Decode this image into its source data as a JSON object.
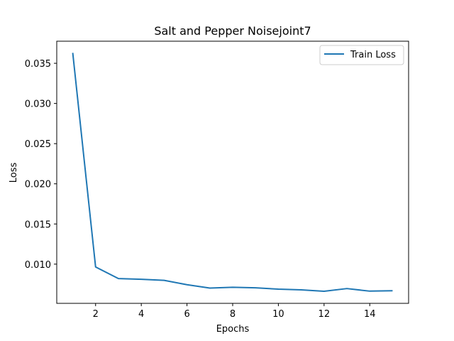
{
  "chart_data": {
    "type": "line",
    "title": "Salt and Pepper Noisejoint7",
    "xlabel": "Epochs",
    "ylabel": "Loss",
    "xlim": [
      0.3,
      15.7
    ],
    "ylim": [
      0.00512,
      0.03775
    ],
    "xticks": [
      2,
      4,
      6,
      8,
      10,
      12,
      14
    ],
    "xtick_labels": [
      "2",
      "4",
      "6",
      "8",
      "10",
      "12",
      "14"
    ],
    "yticks": [
      0.01,
      0.015,
      0.02,
      0.025,
      0.03,
      0.035
    ],
    "ytick_labels": [
      "0.010",
      "0.015",
      "0.020",
      "0.025",
      "0.030",
      "0.035"
    ],
    "grid": false,
    "legend_position": "top-right",
    "series": [
      {
        "name": "Train Loss",
        "color": "#1f77b4",
        "x": [
          1,
          2,
          3,
          4,
          5,
          6,
          7,
          8,
          9,
          10,
          11,
          12,
          13,
          14,
          15
        ],
        "y": [
          0.0363,
          0.00965,
          0.0082,
          0.00812,
          0.00798,
          0.00744,
          0.00702,
          0.00712,
          0.00705,
          0.00689,
          0.0068,
          0.00662,
          0.00696,
          0.00664,
          0.00669
        ]
      }
    ]
  }
}
